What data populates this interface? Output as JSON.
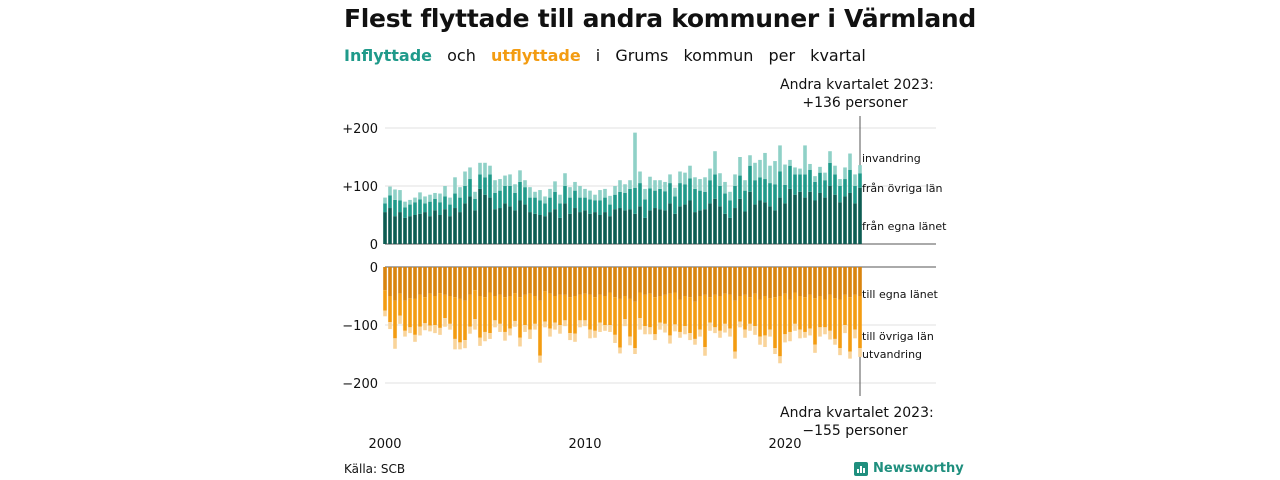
{
  "title": "Flest flyttade till andra kommuner i Värmland",
  "subtitle": {
    "in": "Inflyttade",
    "och": "och",
    "ut": "utflyttade",
    "rest": [
      "i",
      "Grums",
      "kommun",
      "per",
      "kvartal"
    ]
  },
  "annotation_top": {
    "line1": "Andra kvartalet 2023:",
    "line2": "+136 personer"
  },
  "annotation_bottom": {
    "line1": "Andra kvartalet 2023:",
    "line2": "−155 personer"
  },
  "source": "Källa: SCB",
  "brand": "Newsworthy",
  "colors": {
    "in_egna": "#0d5c52",
    "in_ovriga": "#1f9a8a",
    "in_invandring": "#8fd1c7",
    "ut_egna": "#d9840e",
    "ut_ovriga": "#f39c12",
    "ut_utvandring": "#f9d49a"
  },
  "chart_data": {
    "type": "bar",
    "stacked": true,
    "x_start": "2000 Q1",
    "x_end": "2023 Q2",
    "x_ticks": [
      "2000",
      "2010",
      "2020"
    ],
    "y_ticks": {
      "top": [
        "+200",
        "+100",
        "0"
      ],
      "bottom": [
        "0",
        "−100",
        "−200"
      ]
    },
    "ylim_top": [
      0,
      220
    ],
    "ylim_bottom": [
      -220,
      0
    ],
    "series_labels": {
      "in_invandring": "invandring",
      "in_ovriga": "från övriga län",
      "in_egna": "från egna länet",
      "ut_egna": "till egna länet",
      "ut_ovriga": "till övriga län",
      "ut_utvandring": "utvandring"
    },
    "in_egna": [
      55,
      62,
      48,
      55,
      45,
      48,
      50,
      52,
      55,
      48,
      58,
      50,
      60,
      48,
      62,
      55,
      70,
      82,
      58,
      95,
      85,
      80,
      60,
      62,
      70,
      65,
      58,
      75,
      68,
      55,
      52,
      50,
      48,
      55,
      60,
      45,
      70,
      52,
      62,
      55,
      58,
      52,
      55,
      50,
      55,
      48,
      60,
      62,
      58,
      60,
      52,
      65,
      45,
      58,
      62,
      60,
      58,
      70,
      52,
      65,
      68,
      75,
      55,
      58,
      60,
      70,
      78,
      65,
      52,
      45,
      62,
      78,
      56,
      90,
      68,
      75,
      72,
      65,
      58,
      80,
      70,
      95,
      85,
      90,
      80,
      90,
      75,
      88,
      80,
      100,
      85,
      72,
      82,
      88,
      70,
      97
    ],
    "in_ovriga": [
      15,
      22,
      28,
      20,
      18,
      20,
      22,
      25,
      15,
      25,
      20,
      22,
      22,
      20,
      25,
      25,
      30,
      30,
      20,
      25,
      30,
      40,
      28,
      30,
      30,
      35,
      30,
      32,
      30,
      25,
      28,
      25,
      22,
      25,
      30,
      25,
      30,
      28,
      30,
      25,
      22,
      25,
      20,
      25,
      25,
      20,
      25,
      28,
      30,
      35,
      45,
      40,
      32,
      38,
      30,
      35,
      33,
      35,
      30,
      40,
      35,
      38,
      40,
      34,
      30,
      40,
      42,
      35,
      35,
      30,
      38,
      40,
      36,
      45,
      42,
      40,
      40,
      40,
      45,
      45,
      32,
      40,
      35,
      30,
      40,
      38,
      32,
      35,
      30,
      40,
      35,
      28,
      30,
      40,
      30,
      25
    ],
    "in_invandring": [
      10,
      15,
      18,
      18,
      10,
      8,
      8,
      12,
      12,
      12,
      10,
      15,
      18,
      12,
      28,
      18,
      25,
      20,
      12,
      20,
      25,
      15,
      22,
      20,
      18,
      20,
      15,
      20,
      12,
      18,
      10,
      18,
      12,
      15,
      18,
      15,
      22,
      18,
      15,
      20,
      15,
      15,
      10,
      18,
      15,
      15,
      15,
      20,
      15,
      15,
      95,
      20,
      18,
      20,
      18,
      15,
      16,
      15,
      15,
      20,
      20,
      22,
      20,
      20,
      25,
      20,
      40,
      22,
      20,
      15,
      20,
      32,
      18,
      18,
      30,
      30,
      45,
      30,
      40,
      45,
      35,
      10,
      12,
      10,
      50,
      10,
      10,
      10,
      13,
      20,
      15,
      12,
      20,
      28,
      20,
      14
    ],
    "ut_egna": [
      40,
      50,
      58,
      46,
      58,
      54,
      55,
      48,
      52,
      46,
      50,
      45,
      48,
      50,
      52,
      55,
      58,
      48,
      40,
      50,
      52,
      44,
      50,
      48,
      52,
      50,
      45,
      52,
      48,
      46,
      50,
      58,
      42,
      46,
      50,
      48,
      48,
      52,
      50,
      48,
      46,
      48,
      52,
      48,
      50,
      44,
      52,
      55,
      50,
      55,
      60,
      44,
      48,
      46,
      52,
      50,
      48,
      46,
      44,
      56,
      50,
      52,
      60,
      50,
      48,
      52,
      48,
      50,
      46,
      48,
      58,
      50,
      48,
      52,
      46,
      56,
      50,
      54,
      52,
      50,
      46,
      56,
      44,
      50,
      52,
      48,
      54,
      50,
      56,
      48,
      54,
      56,
      48,
      52,
      48,
      50
    ],
    "ut_ovriga": [
      35,
      45,
      65,
      38,
      52,
      50,
      62,
      55,
      45,
      55,
      50,
      60,
      40,
      48,
      72,
      75,
      68,
      55,
      50,
      72,
      60,
      70,
      42,
      50,
      60,
      56,
      48,
      70,
      52,
      62,
      48,
      95,
      52,
      60,
      46,
      52,
      44,
      62,
      65,
      44,
      46,
      60,
      58,
      48,
      50,
      56,
      65,
      84,
      40,
      65,
      80,
      44,
      54,
      58,
      64,
      46,
      50,
      72,
      55,
      56,
      52,
      62,
      64,
      58,
      90,
      44,
      56,
      60,
      52,
      58,
      88,
      44,
      60,
      46,
      56,
      64,
      68,
      54,
      88,
      104,
      70,
      56,
      54,
      58,
      60,
      58,
      80,
      54,
      48,
      62,
      70,
      84,
      52,
      94,
      60,
      90
    ],
    "ut_utvandring": [
      10,
      12,
      18,
      14,
      10,
      10,
      12,
      15,
      12,
      10,
      14,
      12,
      15,
      10,
      18,
      12,
      14,
      12,
      18,
      14,
      16,
      10,
      12,
      14,
      15,
      12,
      10,
      15,
      12,
      16,
      10,
      12,
      10,
      14,
      12,
      15,
      10,
      12,
      14,
      12,
      10,
      15,
      12,
      16,
      10,
      12,
      14,
      10,
      12,
      15,
      10,
      20,
      14,
      12,
      10,
      12,
      15,
      14,
      12,
      10,
      14,
      12,
      10,
      12,
      15,
      14,
      10,
      12,
      15,
      14,
      12,
      10,
      14,
      12,
      15,
      14,
      20,
      12,
      10,
      12,
      14,
      16,
      12,
      15,
      10,
      12,
      14,
      16,
      12,
      15,
      10,
      12,
      14,
      12,
      15,
      15
    ]
  }
}
